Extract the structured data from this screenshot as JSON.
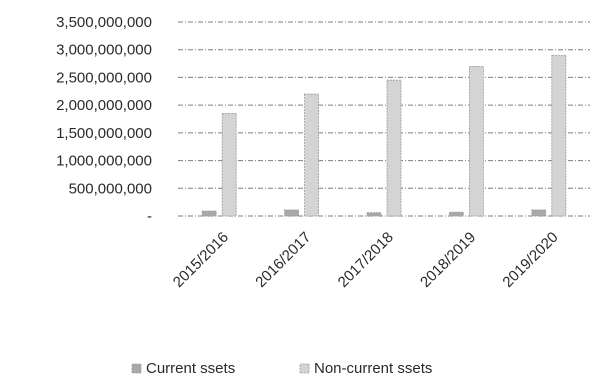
{
  "chart_data": {
    "type": "bar",
    "categories": [
      "2015/2016",
      "2016/2017",
      "2017/2018",
      "2018/2019",
      "2019/2020"
    ],
    "series": [
      {
        "name": "Current ssets",
        "values": [
          90000000,
          110000000,
          60000000,
          70000000,
          110000000
        ],
        "color": "#a9a9a9"
      },
      {
        "name": "Non-current ssets",
        "values": [
          1850000000,
          2200000000,
          2450000000,
          2700000000,
          2900000000
        ],
        "color": "#d4d4d4"
      }
    ],
    "y_ticks": [
      {
        "value": 3500000000,
        "label": "3,500,000,000"
      },
      {
        "value": 3000000000,
        "label": "3,000,000,000"
      },
      {
        "value": 2500000000,
        "label": "2,500,000,000"
      },
      {
        "value": 2000000000,
        "label": "2,000,000,000"
      },
      {
        "value": 1500000000,
        "label": "1,500,000,000"
      },
      {
        "value": 1000000000,
        "label": "1,000,000,000"
      },
      {
        "value": 500000000,
        "label": "500,000,000"
      },
      {
        "value": 0,
        "label": "-"
      }
    ],
    "ylim": [
      0,
      3500000000
    ],
    "grid": true,
    "legend_position": "bottom",
    "gridline_color": "#555555"
  }
}
